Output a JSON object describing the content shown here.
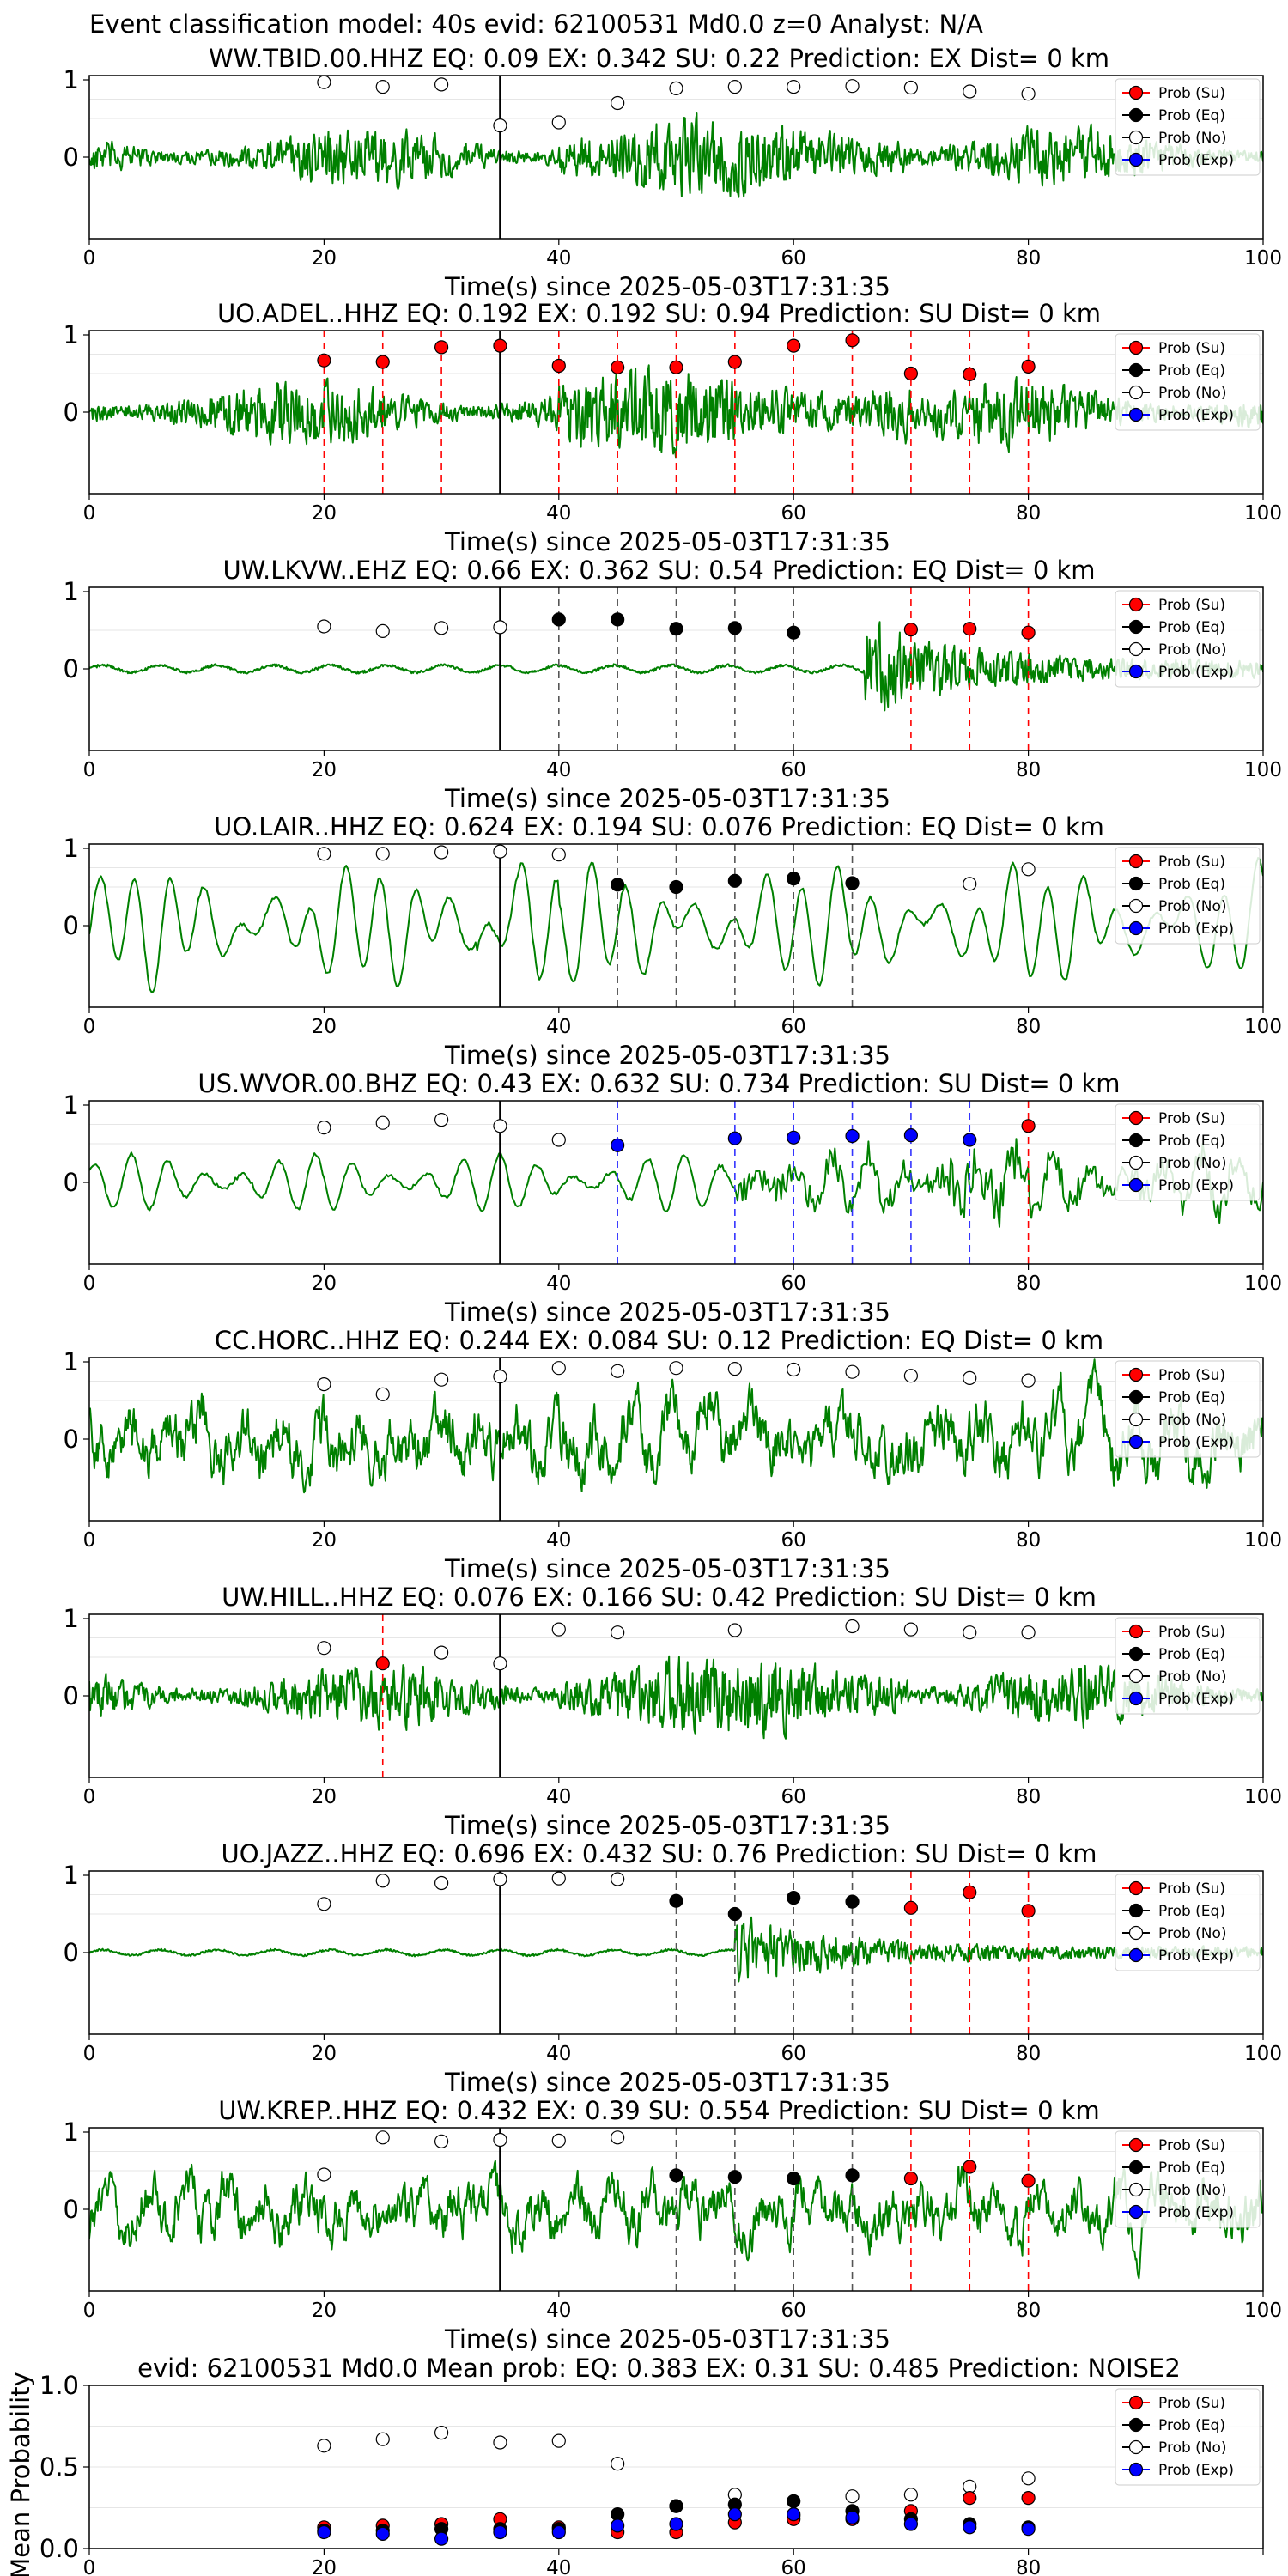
{
  "figure": {
    "suptitle": "Event classification model: 40s evid: 62100531 Md0.0 z=0 Analyst: N/A",
    "xlabel": "Time(s) since 2025-05-03T17:31:35",
    "xlim": [
      0,
      100
    ],
    "xticks": [
      0,
      20,
      40,
      60,
      80,
      100
    ],
    "yticks": [
      0,
      1
    ],
    "legend": [
      "Prob (Su)",
      "Prob (Eq)",
      "Prob (No)",
      "Prob (Exp)"
    ],
    "legend_position": "top-right",
    "colors": {
      "su": "#ff0000",
      "eq": "#000000",
      "no": "#ffffff",
      "exp": "#0000ff",
      "waveform": "#008000",
      "su_line": "#ff0000",
      "eq_line": "#555555",
      "exp_line": "#3333ff"
    }
  },
  "chart_data": [
    {
      "type": "line",
      "title": "WW.TBID.00.HHZ   EQ: 0.09  EX: 0.342  SU: 0.22   Prediction: EX    Dist= 0 km",
      "style": "noisy",
      "amplitude": 0.62,
      "arrival_time": 35,
      "prob_times": [
        20,
        25,
        30,
        35,
        40,
        45,
        50,
        55,
        60,
        65,
        70,
        75,
        80
      ],
      "prob_values": [
        0.97,
        0.91,
        0.94,
        0.41,
        0.45,
        0.7,
        0.89,
        0.91,
        0.91,
        0.92,
        0.9,
        0.85,
        0.82
      ],
      "prob_classes": [
        "no",
        "no",
        "no",
        "no",
        "no",
        "no",
        "no",
        "no",
        "no",
        "no",
        "no",
        "no",
        "no"
      ]
    },
    {
      "type": "line",
      "title": "UO.ADEL..HHZ   EQ: 0.192  EX: 0.192  SU: 0.94   Prediction: SU    Dist= 0 km",
      "style": "noisy",
      "amplitude": 0.72,
      "arrival_time": 35,
      "prob_times": [
        20,
        25,
        30,
        35,
        40,
        45,
        50,
        55,
        60,
        65,
        70,
        75,
        80
      ],
      "prob_values": [
        0.67,
        0.65,
        0.84,
        0.86,
        0.6,
        0.58,
        0.58,
        0.65,
        0.86,
        0.93,
        0.5,
        0.49,
        0.59
      ],
      "prob_classes": [
        "su",
        "su",
        "su",
        "su",
        "su",
        "su",
        "su",
        "su",
        "su",
        "su",
        "su",
        "su",
        "su"
      ]
    },
    {
      "type": "line",
      "title": "UW.LKVW..EHZ   EQ: 0.66  EX: 0.362  SU: 0.54   Prediction: EQ    Dist= 0 km",
      "style": "quiet_then_burst",
      "amplitude": 0.65,
      "arrival_time": 35,
      "prob_times": [
        20,
        25,
        30,
        35,
        40,
        45,
        50,
        55,
        60,
        70,
        75,
        80
      ],
      "prob_values": [
        0.55,
        0.49,
        0.53,
        0.54,
        0.64,
        0.64,
        0.52,
        0.53,
        0.47,
        0.51,
        0.52,
        0.47
      ],
      "prob_classes": [
        "no",
        "no",
        "no",
        "no",
        "eq",
        "eq",
        "eq",
        "eq",
        "eq",
        "su",
        "su",
        "su"
      ]
    },
    {
      "type": "line",
      "title": "UO.LAIR..HHZ   EQ: 0.624  EX: 0.194  SU: 0.076   Prediction: EQ    Dist= 0 km",
      "style": "smooth",
      "amplitude": 0.85,
      "arrival_time": 35,
      "prob_times": [
        20,
        25,
        30,
        35,
        40,
        45,
        50,
        55,
        60,
        65,
        75,
        80
      ],
      "prob_values": [
        0.93,
        0.93,
        0.95,
        0.96,
        0.92,
        0.53,
        0.5,
        0.58,
        0.61,
        0.55,
        0.54,
        0.73
      ],
      "prob_classes": [
        "no",
        "no",
        "no",
        "no",
        "no",
        "eq",
        "eq",
        "eq",
        "eq",
        "eq",
        "no",
        "no"
      ]
    },
    {
      "type": "line",
      "title": "US.WVOR.00.BHZ   EQ: 0.43  EX: 0.632  SU: 0.734   Prediction: SU    Dist= 0 km",
      "style": "smooth_mixed",
      "amplitude": 0.55,
      "arrival_time": 35,
      "prob_times": [
        20,
        25,
        30,
        35,
        40,
        45,
        55,
        60,
        65,
        70,
        75,
        80
      ],
      "prob_values": [
        0.71,
        0.77,
        0.81,
        0.73,
        0.55,
        0.48,
        0.57,
        0.58,
        0.6,
        0.61,
        0.55,
        0.73
      ],
      "prob_classes": [
        "no",
        "no",
        "no",
        "no",
        "no",
        "exp",
        "exp",
        "exp",
        "exp",
        "exp",
        "exp",
        "su"
      ]
    },
    {
      "type": "line",
      "title": "CC.HORC..HHZ   EQ: 0.244  EX: 0.084  SU: 0.12   Prediction: EQ    Dist= 0 km",
      "style": "rough",
      "amplitude": 0.72,
      "arrival_time": 35,
      "prob_times": [
        20,
        25,
        30,
        35,
        40,
        45,
        50,
        55,
        60,
        65,
        70,
        75,
        80
      ],
      "prob_values": [
        0.71,
        0.58,
        0.77,
        0.81,
        0.92,
        0.88,
        0.92,
        0.91,
        0.9,
        0.87,
        0.82,
        0.79,
        0.76
      ],
      "prob_classes": [
        "no",
        "no",
        "no",
        "no",
        "no",
        "no",
        "no",
        "no",
        "no",
        "no",
        "no",
        "no",
        "no"
      ]
    },
    {
      "type": "line",
      "title": "UW.HILL..HHZ   EQ: 0.076  EX: 0.166  SU: 0.42   Prediction: SU    Dist= 0 km",
      "style": "noisy",
      "amplitude": 0.65,
      "arrival_time": 35,
      "prob_times": [
        20,
        25,
        30,
        35,
        40,
        45,
        55,
        65,
        70,
        75,
        80
      ],
      "prob_values": [
        0.62,
        0.42,
        0.56,
        0.42,
        0.86,
        0.82,
        0.85,
        0.9,
        0.86,
        0.82,
        0.82
      ],
      "prob_classes": [
        "no",
        "su",
        "no",
        "no",
        "no",
        "no",
        "no",
        "no",
        "no",
        "no",
        "no"
      ]
    },
    {
      "type": "line",
      "title": "UO.JAZZ..HHZ   EQ: 0.696  EX: 0.432  SU: 0.76   Prediction: SU    Dist= 0 km",
      "style": "quiet_then_burst",
      "amplitude": 0.5,
      "arrival_time": 35,
      "prob_times": [
        20,
        25,
        30,
        35,
        40,
        45,
        50,
        55,
        60,
        65,
        70,
        75,
        80
      ],
      "prob_values": [
        0.63,
        0.93,
        0.9,
        0.95,
        0.96,
        0.95,
        0.67,
        0.5,
        0.71,
        0.66,
        0.58,
        0.78,
        0.54
      ],
      "prob_classes": [
        "no",
        "no",
        "no",
        "no",
        "no",
        "no",
        "eq",
        "eq",
        "eq",
        "eq",
        "su",
        "su",
        "su"
      ]
    },
    {
      "type": "line",
      "title": "UW.KREP..HHZ   EQ: 0.432  EX: 0.39  SU: 0.554   Prediction: SU    Dist= 0 km",
      "style": "rough",
      "amplitude": 0.62,
      "arrival_time": 35,
      "prob_times": [
        20,
        25,
        30,
        35,
        40,
        45,
        50,
        55,
        60,
        65,
        70,
        75,
        80
      ],
      "prob_values": [
        0.45,
        0.93,
        0.88,
        0.9,
        0.89,
        0.93,
        0.44,
        0.42,
        0.4,
        0.44,
        0.4,
        0.55,
        0.37
      ],
      "prob_classes": [
        "no",
        "no",
        "no",
        "no",
        "no",
        "no",
        "eq",
        "eq",
        "eq",
        "eq",
        "su",
        "su",
        "su"
      ]
    },
    {
      "type": "scatter",
      "title": "evid: 62100531  Md0.0   Mean prob:    EQ: 0.383  EX: 0.31  SU: 0.485   Prediction: NOISE2",
      "ylabel": "Mean Probability",
      "ylim": [
        0,
        1
      ],
      "yticks": [
        0.0,
        0.5,
        1.0
      ],
      "x": [
        20,
        25,
        30,
        35,
        40,
        45,
        50,
        55,
        60,
        65,
        70,
        75,
        80
      ],
      "series": [
        {
          "name": "Prob (Su)",
          "key": "su",
          "values": [
            0.13,
            0.14,
            0.15,
            0.18,
            0.13,
            0.1,
            0.1,
            0.16,
            0.18,
            0.18,
            0.23,
            0.31,
            0.31
          ]
        },
        {
          "name": "Prob (Eq)",
          "key": "eq",
          "values": [
            0.11,
            0.11,
            0.12,
            0.12,
            0.12,
            0.21,
            0.26,
            0.27,
            0.29,
            0.23,
            0.18,
            0.15,
            0.13
          ]
        },
        {
          "name": "Prob (No)",
          "key": "no",
          "values": [
            0.63,
            0.67,
            0.71,
            0.65,
            0.66,
            0.52,
            0.26,
            0.33,
            0.2,
            0.32,
            0.33,
            0.38,
            0.43
          ]
        },
        {
          "name": "Prob (Exp)",
          "key": "exp",
          "values": [
            0.1,
            0.09,
            0.06,
            0.1,
            0.1,
            0.14,
            0.15,
            0.21,
            0.21,
            0.19,
            0.15,
            0.13,
            0.12
          ]
        }
      ]
    }
  ]
}
